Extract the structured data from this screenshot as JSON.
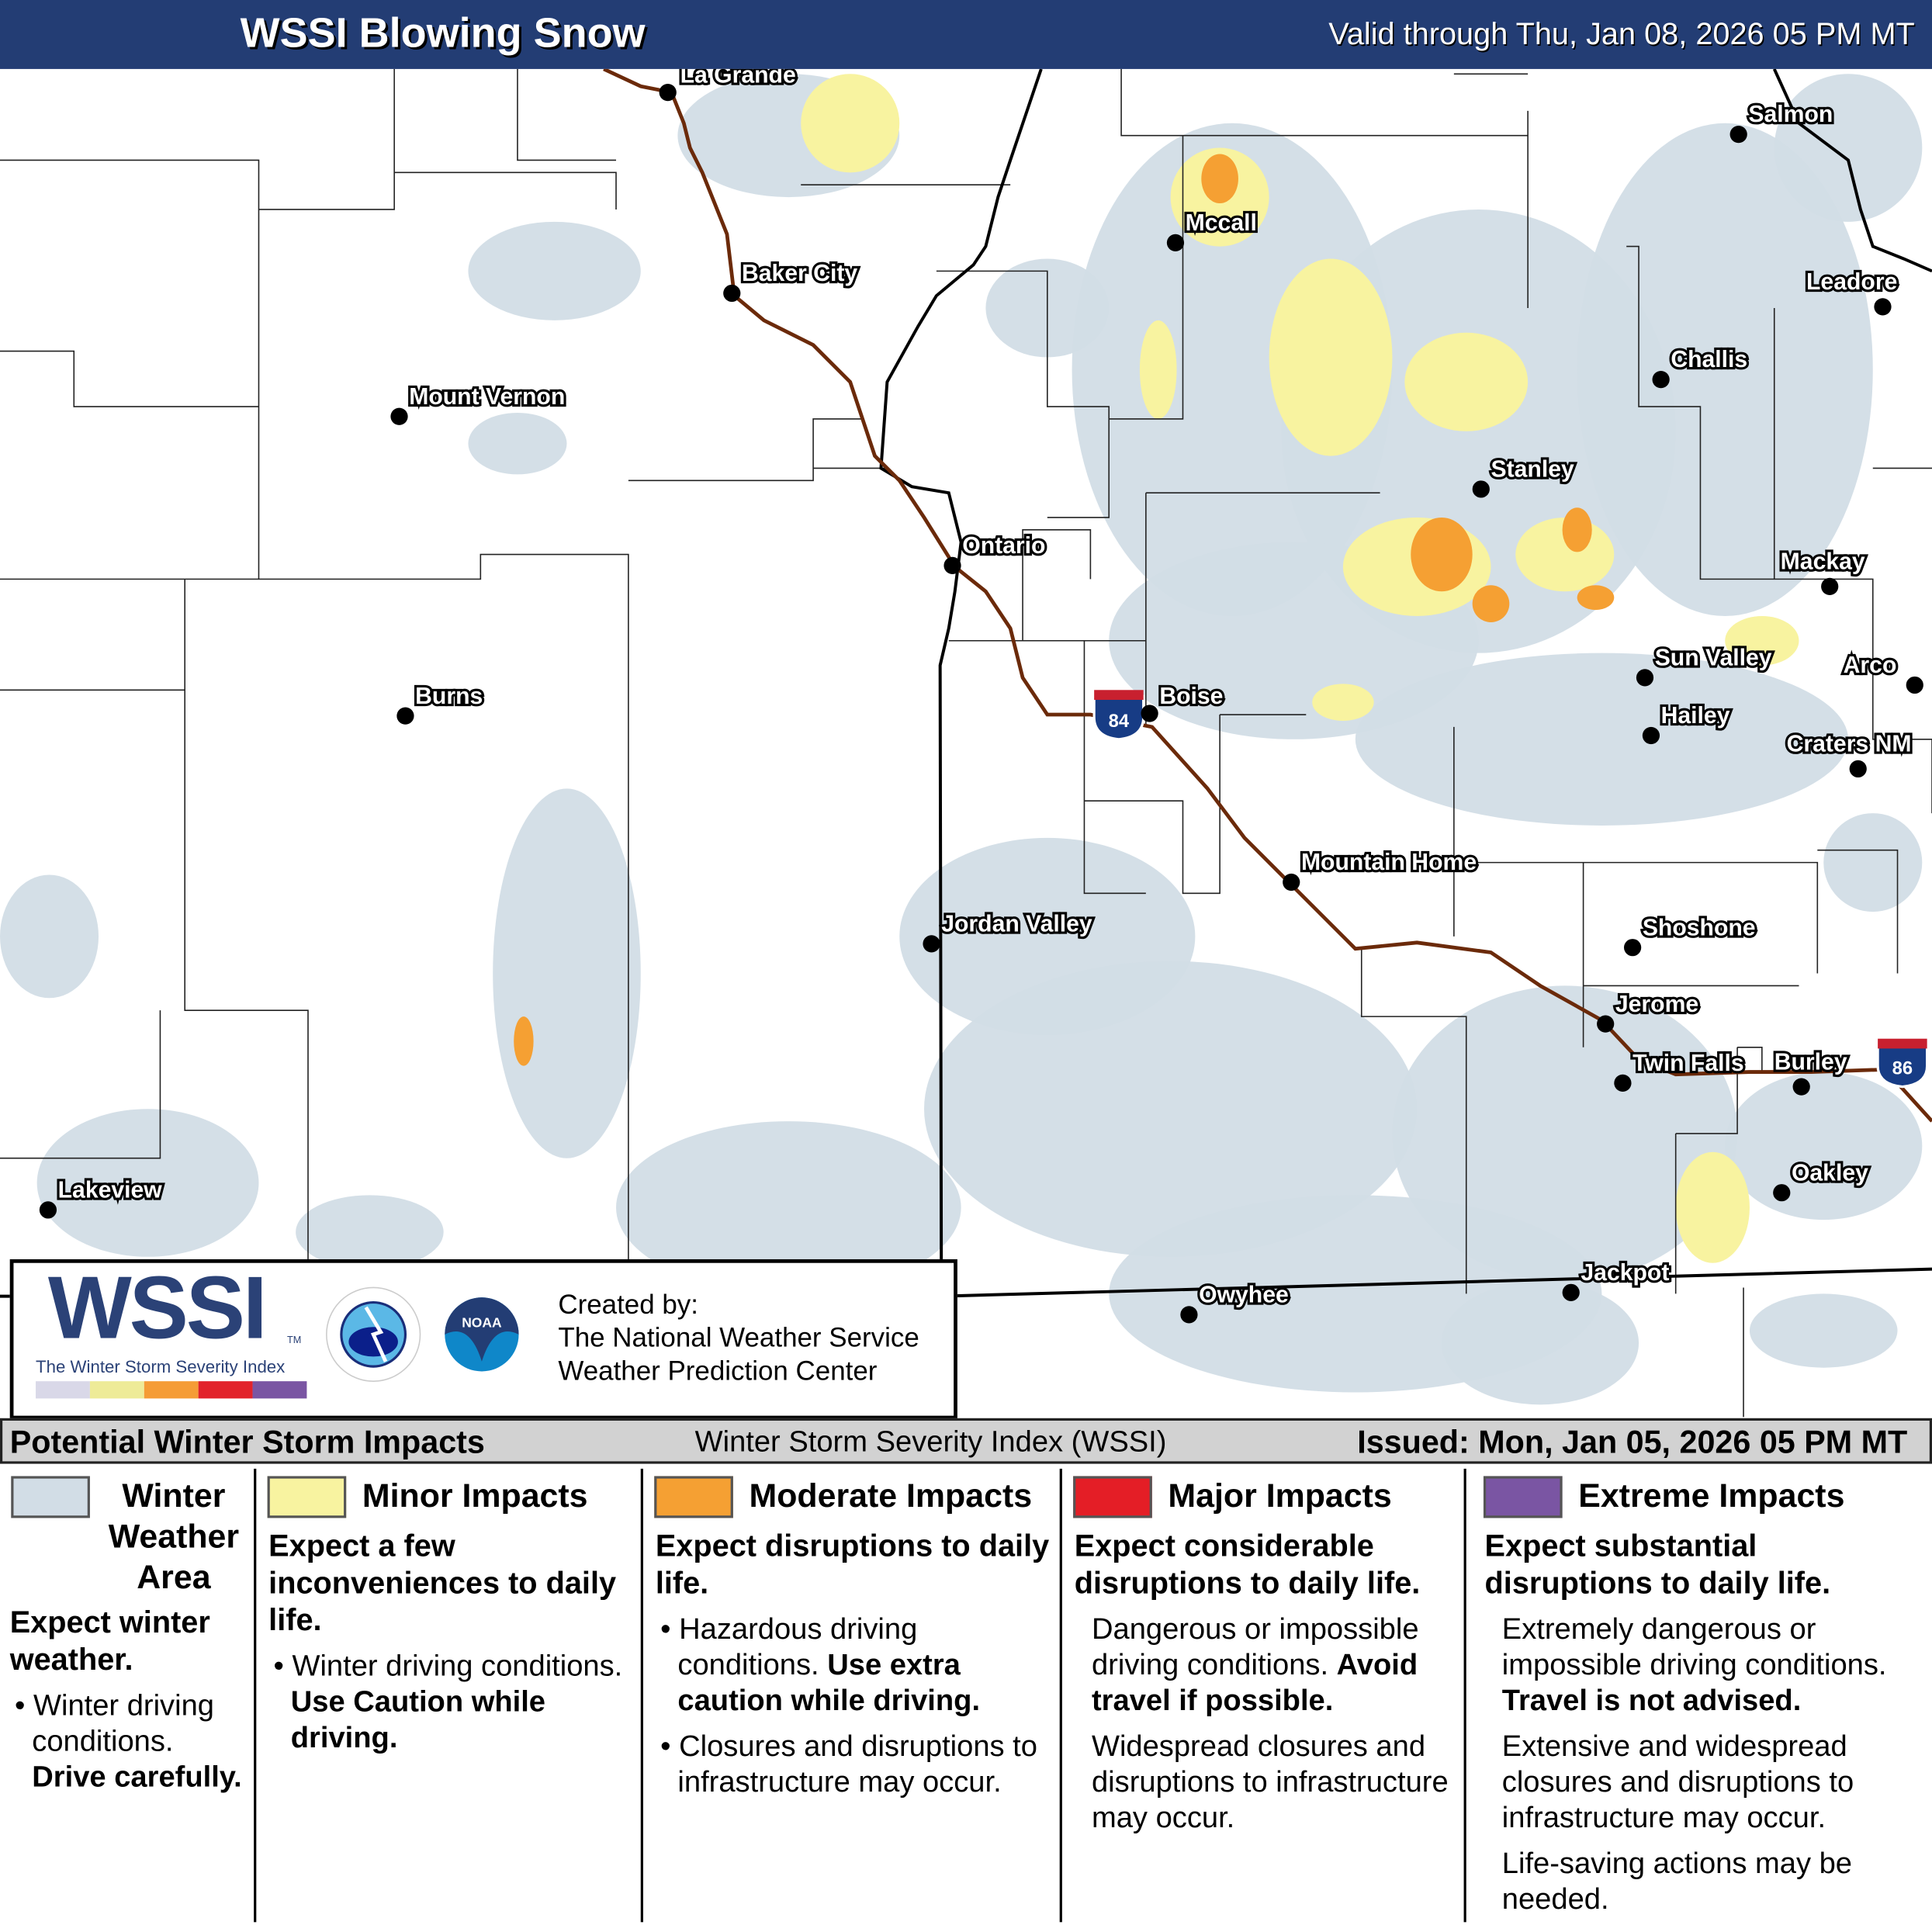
{
  "header": {
    "title": "WSSI Blowing Snow",
    "valid": "Valid through Thu, Jan 08, 2026 05 PM MT"
  },
  "map": {
    "colors": {
      "winter_weather_area": "#d2dde6",
      "minor": "#f8f3a0",
      "moderate": "#f5a033",
      "major": "#e41e26",
      "extreme": "#7a55a3",
      "interstate": "#6b2a0a"
    },
    "interstates": [
      "84",
      "86"
    ],
    "cities": [
      "La Grande",
      "Baker City",
      "Mount Vernon",
      "Burns",
      "Lakeview",
      "Ontario",
      "Mccall",
      "Boise",
      "Mountain Home",
      "Jordan Valley",
      "Owyhee",
      "Jackpot",
      "Stanley",
      "Challis",
      "Salmon",
      "Leadore",
      "Mackay",
      "Sun Valley",
      "Hailey",
      "Arco",
      "Craters NM",
      "Shoshone",
      "Jerome",
      "Twin Falls",
      "Burley",
      "Oakley"
    ]
  },
  "logo": {
    "wssi": "WSSI",
    "tm": "TM",
    "subtitle": "The Winter Storm Severity Index",
    "nws": "NATIONAL WEATHER SERVICE",
    "noaa": "NOAA",
    "created_by": "Created by:",
    "org1": "The National Weather Service",
    "org2": "Weather Prediction Center",
    "scale_colors": [
      "#d9d8e8",
      "#eeeb98",
      "#f59c36",
      "#e2232b",
      "#7a55a3"
    ]
  },
  "legend_bar": {
    "left": "Potential Winter Storm Impacts",
    "center": "Winter Storm Severity Index (WSSI)",
    "right": "Issued: Mon, Jan 05, 2026 05 PM MT"
  },
  "legend": [
    {
      "title": "Winter Weather Area",
      "color": "#d2dde6",
      "subtitle": "Expect winter weather.",
      "bullet": "Winter driving conditions.",
      "bold": "Drive carefully."
    },
    {
      "title": "Minor Impacts",
      "color": "#f8f3a0",
      "subtitle": "Expect a few inconveniences to daily life.",
      "bullet": "Winter driving conditions.",
      "bold": "Use Caution while driving."
    },
    {
      "title": "Moderate Impacts",
      "color": "#f5a033",
      "subtitle": "Expect disruptions to daily life.",
      "bullet": "Hazardous driving conditions.",
      "bold": "Use extra caution while driving.",
      "bullet2": "Closures and disruptions to infrastructure may occur."
    },
    {
      "title": "Major Impacts",
      "color": "#e41e26",
      "subtitle": "Expect considerable disruptions to daily life.",
      "bullet": "Dangerous or impossible driving conditions.",
      "bold": "Avoid travel if possible.",
      "bullet2": "Widespread closures and disruptions to infrastructure may occur."
    },
    {
      "title": "Extreme Impacts",
      "color": "#7a55a3",
      "subtitle": "Expect substantial disruptions to daily life.",
      "bullet": "Extremely dangerous or impossible driving conditions.",
      "bold": "Travel is not advised.",
      "bullet2": "Extensive and widespread closures and disruptions to infrastructure may occur.",
      "bullet3": "Life-saving actions may be needed."
    }
  ]
}
